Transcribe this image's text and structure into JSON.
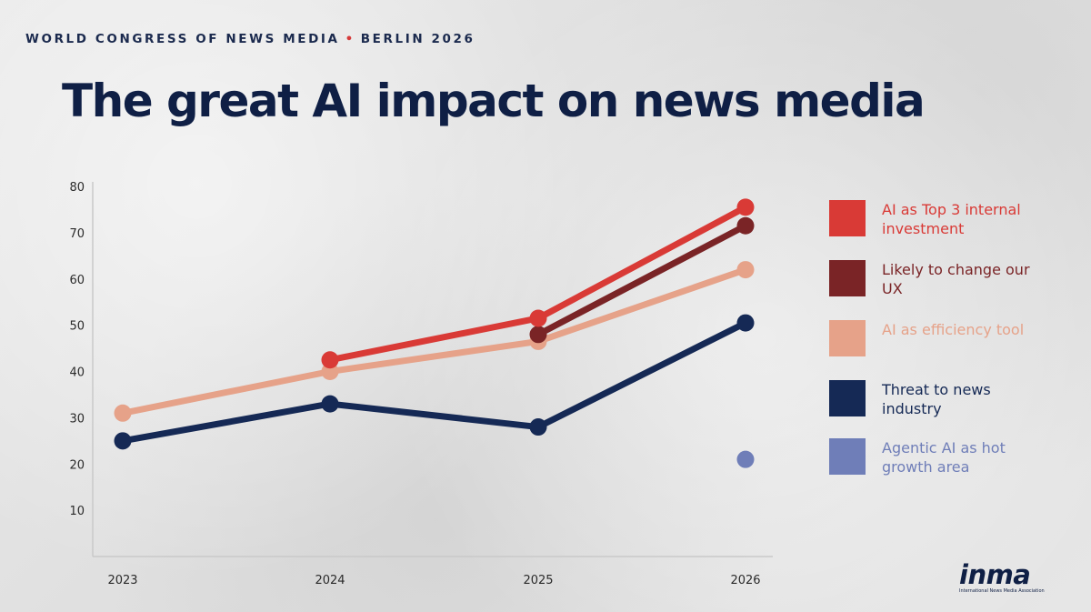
{
  "header": {
    "kicker_left": "WORLD CONGRESS OF NEWS MEDIA",
    "kicker_dot": "•",
    "kicker_right": "BERLIN 2026",
    "title": "The great AI impact on news media"
  },
  "chart_data": {
    "type": "line",
    "title": "The great AI impact on news media",
    "categories": [
      "2023",
      "2024",
      "2025",
      "2026"
    ],
    "ylim": [
      0,
      80
    ],
    "yticks": [
      10,
      20,
      30,
      40,
      50,
      60,
      70,
      80
    ],
    "grid": false,
    "legend_position": "right",
    "series": [
      {
        "name": "AI as Top 3 internal investment",
        "color": "#d93a36",
        "values": [
          null,
          42.5,
          51.5,
          75.5
        ]
      },
      {
        "name": "Likely to change our UX",
        "color": "#7a2426",
        "values": [
          null,
          null,
          48,
          71.5
        ]
      },
      {
        "name": "AI as efficiency tool",
        "color": "#e6a289",
        "values": [
          31,
          40,
          46.5,
          62
        ]
      },
      {
        "name": "Threat to news industry",
        "color": "#152955",
        "values": [
          25,
          33,
          28,
          50.5
        ]
      },
      {
        "name": "Agentic AI as hot growth area",
        "color": "#6f7eb8",
        "values": [
          null,
          null,
          null,
          21
        ]
      }
    ]
  },
  "legend": {
    "items": [
      {
        "label": "AI as Top 3 internal investment",
        "color": "#d93a36"
      },
      {
        "label": "Likely to change our UX",
        "color": "#7a2426"
      },
      {
        "label": "AI as efficiency tool",
        "color": "#e6a289"
      },
      {
        "label": "Threat to news industry",
        "color": "#152955"
      },
      {
        "label": "Agentic AI as hot growth area",
        "color": "#6f7eb8"
      }
    ]
  },
  "logo": {
    "mark": "inma",
    "subtitle": "International News Media Association"
  }
}
